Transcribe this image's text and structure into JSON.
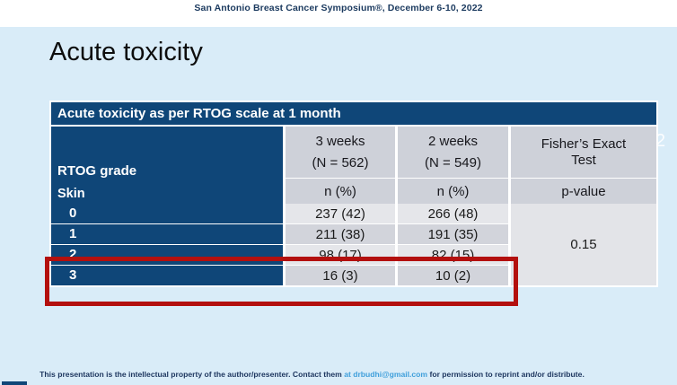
{
  "colors": {
    "accent_navy": "#0f4678",
    "highlight_red": "#b3100e",
    "link_blue": "#3f9fdb",
    "page_bg": "#d9ecf8",
    "header_gray": "#ced1d9",
    "row_light_gray": "#e5e6ea",
    "row_mid_gray": "#d2d4db"
  },
  "top_banner": {
    "text": "San Antonio Breast Cancer Symposium®, December 6-10, 2022"
  },
  "slide": {
    "title": "Acute toxicity",
    "page_number_ghost": "2"
  },
  "table": {
    "caption": "Acute toxicity as per RTOG scale at 1 month",
    "row_header_title": "RTOG grade",
    "row_header_sub": "Skin",
    "columns": [
      {
        "label": "3 weeks",
        "n": "(N = 562)",
        "sub": "n (%)"
      },
      {
        "label": "2 weeks",
        "n": "(N = 549)",
        "sub": "n (%)"
      },
      {
        "label": "Fisher’s Exact",
        "label2": "Test",
        "sub": "p-value"
      }
    ],
    "rows": [
      {
        "grade": "0",
        "wk3": "237 (42)",
        "wk2": "266 (48)"
      },
      {
        "grade": "1",
        "wk3": "211 (38)",
        "wk2": "191 (35)"
      },
      {
        "grade": "2",
        "wk3": "98 (17)",
        "wk2": "82 (15)"
      },
      {
        "grade": "3",
        "wk3": "16 (3)",
        "wk2": "10 (2)"
      }
    ],
    "p_value": "0.15"
  },
  "footer": {
    "text_before": "This presentation is the intellectual property of the author/presenter. Contact them ",
    "link_text": "at  drbudhi@gmail.com",
    "text_after": " for permission to reprint and/or distribute."
  }
}
